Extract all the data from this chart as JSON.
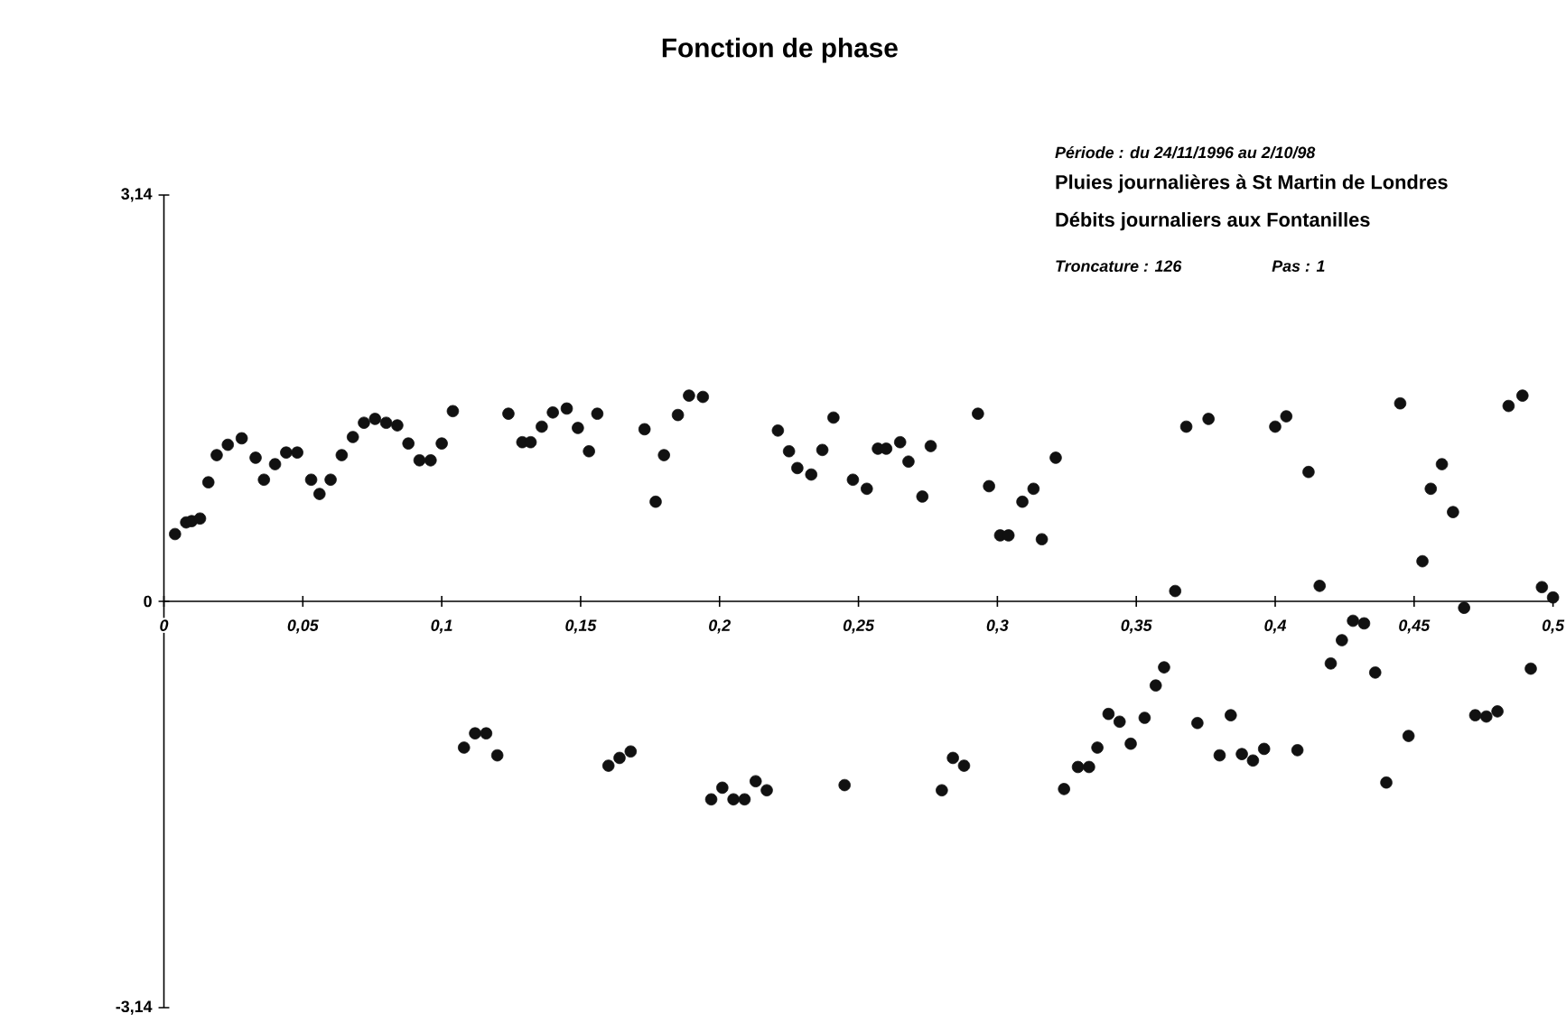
{
  "chart_data": {
    "type": "scatter",
    "title": "Fonction de phase",
    "annotations": [
      "Période : du 24/11/1996 au 2/10/98",
      "Pluies journalières à St Martin de Londres",
      "Débits journaliers aux Fontanilles",
      "Troncature : 126",
      "Pas : 1"
    ],
    "xlim": [
      0,
      0.5
    ],
    "ylim": [
      -3.14,
      3.14
    ],
    "xticks": [
      {
        "value": 0,
        "label": "0"
      },
      {
        "value": 0.05,
        "label": "0,05"
      },
      {
        "value": 0.1,
        "label": "0,1"
      },
      {
        "value": 0.15,
        "label": "0,15"
      },
      {
        "value": 0.2,
        "label": "0,2"
      },
      {
        "value": 0.25,
        "label": "0,25"
      },
      {
        "value": 0.3,
        "label": "0,3"
      },
      {
        "value": 0.35,
        "label": "0,35"
      },
      {
        "value": 0.4,
        "label": "0,4"
      },
      {
        "value": 0.45,
        "label": "0,45"
      },
      {
        "value": 0.5,
        "label": "0,5"
      }
    ],
    "yticks": [
      {
        "value": -3.14,
        "label": "-3,14"
      },
      0,
      {
        "value": 3.14,
        "label": "3,14"
      }
    ],
    "marker": "circle",
    "grid": false,
    "series": [
      {
        "color": "#111111",
        "x": [
          0.004,
          0.008,
          0.01,
          0.013,
          0.016,
          0.019,
          0.023,
          0.028,
          0.033,
          0.036,
          0.04,
          0.044,
          0.048,
          0.053,
          0.056,
          0.06,
          0.064,
          0.068,
          0.072,
          0.076,
          0.08,
          0.084,
          0.088,
          0.092,
          0.096,
          0.1,
          0.104,
          0.108,
          0.112,
          0.116,
          0.12,
          0.124,
          0.129,
          0.132,
          0.136,
          0.14,
          0.145,
          0.149,
          0.153,
          0.156,
          0.16,
          0.164,
          0.168,
          0.173,
          0.177,
          0.18,
          0.185,
          0.189,
          0.194,
          0.197,
          0.201,
          0.205,
          0.209,
          0.213,
          0.217,
          0.221,
          0.225,
          0.228,
          0.233,
          0.237,
          0.241,
          0.245,
          0.248,
          0.253,
          0.257,
          0.26,
          0.265,
          0.268,
          0.273,
          0.276,
          0.28,
          0.284,
          0.288,
          0.293,
          0.297,
          0.301,
          0.304,
          0.309,
          0.313,
          0.316,
          0.321,
          0.324,
          0.329,
          0.333,
          0.336,
          0.34,
          0.344,
          0.348,
          0.353,
          0.357,
          0.36,
          0.364,
          0.368,
          0.372,
          0.376,
          0.38,
          0.384,
          0.388,
          0.392,
          0.396,
          0.4,
          0.404,
          0.408,
          0.412,
          0.416,
          0.42,
          0.424,
          0.428,
          0.432,
          0.436,
          0.44,
          0.445,
          0.448,
          0.453,
          0.456,
          0.46,
          0.464,
          0.468,
          0.472,
          0.476,
          0.48,
          0.484,
          0.489,
          0.492,
          0.496,
          0.5
        ],
        "values": [
          0.52,
          0.61,
          0.62,
          0.64,
          0.92,
          1.13,
          1.21,
          1.26,
          1.11,
          0.94,
          1.06,
          1.15,
          1.15,
          0.94,
          0.83,
          0.94,
          1.13,
          1.27,
          1.38,
          1.41,
          1.38,
          1.36,
          1.22,
          1.09,
          1.09,
          1.22,
          1.47,
          -1.13,
          -1.02,
          -1.02,
          -1.19,
          1.45,
          1.23,
          1.23,
          1.35,
          1.46,
          1.49,
          1.34,
          1.16,
          1.45,
          -1.27,
          -1.21,
          -1.16,
          1.33,
          0.77,
          1.13,
          1.44,
          1.59,
          1.58,
          -1.53,
          -1.44,
          -1.53,
          -1.53,
          -1.39,
          -1.46,
          1.32,
          1.16,
          1.03,
          0.98,
          1.17,
          1.42,
          -1.42,
          0.94,
          0.87,
          1.18,
          1.18,
          1.23,
          1.08,
          0.81,
          1.2,
          -1.46,
          -1.21,
          -1.27,
          1.45,
          0.89,
          0.51,
          0.51,
          0.77,
          0.87,
          0.48,
          1.11,
          -1.45,
          -1.28,
          -1.28,
          -1.13,
          -0.87,
          -0.93,
          -1.1,
          -0.9,
          -0.65,
          -0.51,
          0.08,
          1.35,
          -0.94,
          1.41,
          -1.19,
          -0.88,
          -1.18,
          -1.23,
          -1.14,
          1.35,
          1.43,
          -1.15,
          1.0,
          0.12,
          -0.48,
          -0.3,
          -0.15,
          -0.17,
          -0.55,
          -1.4,
          1.53,
          -1.04,
          0.31,
          0.87,
          1.06,
          0.69,
          -0.05,
          -0.88,
          -0.89,
          -0.85,
          1.51,
          1.59,
          -0.52,
          0.11,
          0.03
        ]
      }
    ]
  }
}
